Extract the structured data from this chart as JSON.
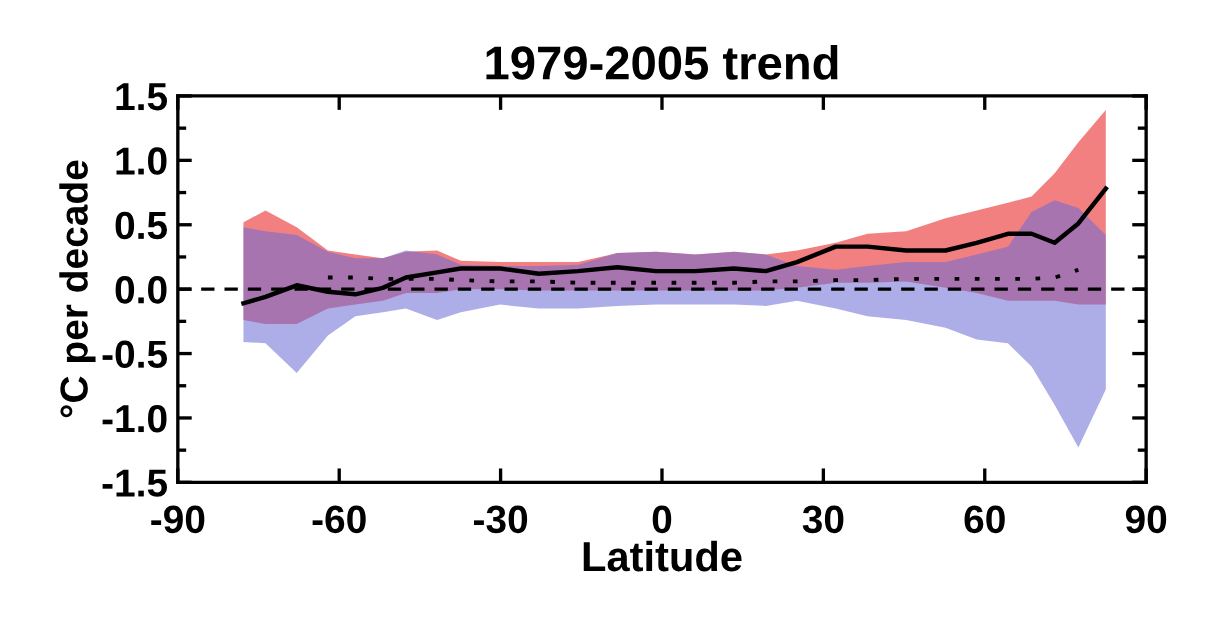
{
  "chart_data": {
    "type": "line",
    "title": "1979-2005 trend",
    "xlabel": "Latitude",
    "ylabel": "°C per decade",
    "xlim": [
      -90,
      90
    ],
    "xticks": [
      -90,
      -60,
      -30,
      0,
      30,
      60,
      90
    ],
    "ylim": [
      -1.5,
      1.5
    ],
    "yticks": [
      {
        "value": 1.5,
        "label": "1.5"
      },
      {
        "value": 1.0,
        "label": "1.0"
      },
      {
        "value": 0.5,
        "label": "0.5"
      },
      {
        "value": 0.0,
        "label": "0.0"
      },
      {
        "value": -0.5,
        "label": "-0.5"
      },
      {
        "value": -1.0,
        "label": "-1.0"
      },
      {
        "value": -1.5,
        "label": "-1.5"
      }
    ],
    "x": [
      -77.8,
      -73.7,
      -67.9,
      -62.1,
      -57,
      -51.9,
      -47.6,
      -41.8,
      -37.4,
      -30.1,
      -22.9,
      -15.6,
      -8.3,
      -1.1,
      6.2,
      13.4,
      19.3,
      25.1,
      32.3,
      38.2,
      45.4,
      52.7,
      58.5,
      64.3,
      68.7,
      73.0,
      77.4,
      82.5
    ],
    "series": [
      {
        "color": "#000000",
        "line_style": "solid",
        "values": [
          -0.11,
          -0.06,
          0.03,
          -0.02,
          -0.04,
          0.01,
          0.09,
          0.13,
          0.16,
          0.16,
          0.12,
          0.14,
          0.17,
          0.14,
          0.14,
          0.16,
          0.14,
          0.21,
          0.33,
          0.33,
          0.3,
          0.3,
          0.36,
          0.43,
          0.43,
          0.36,
          0.51,
          0.78
        ],
        "lower": [
          -0.24,
          -0.27,
          -0.27,
          -0.15,
          -0.12,
          -0.09,
          -0.03,
          -0.03,
          0.0,
          0.0,
          -0.01,
          -0.01,
          -0.01,
          -0.01,
          -0.01,
          -0.01,
          -0.01,
          0.01,
          0.05,
          0.05,
          0.06,
          0.01,
          -0.03,
          -0.09,
          -0.09,
          -0.09,
          -0.12,
          -0.12
        ],
        "upper": [
          0.52,
          0.61,
          0.48,
          0.3,
          0.27,
          0.24,
          0.29,
          0.3,
          0.22,
          0.21,
          0.21,
          0.21,
          0.28,
          0.29,
          0.27,
          0.29,
          0.27,
          0.3,
          0.36,
          0.43,
          0.45,
          0.55,
          0.61,
          0.67,
          0.72,
          0.9,
          1.14,
          1.39
        ]
      },
      {
        "color": "#000000",
        "line_style": "dotted",
        "values": [
          null,
          null,
          null,
          0.09,
          0.09,
          0.08,
          0.08,
          0.08,
          0.07,
          0.06,
          0.06,
          0.05,
          0.05,
          0.05,
          0.05,
          0.05,
          0.06,
          0.06,
          0.07,
          0.07,
          0.08,
          0.08,
          0.08,
          0.08,
          0.08,
          0.09,
          0.15,
          null
        ],
        "lower": [
          -0.41,
          -0.42,
          -0.65,
          -0.36,
          -0.21,
          -0.18,
          -0.15,
          -0.24,
          -0.18,
          -0.12,
          -0.15,
          -0.15,
          -0.13,
          -0.12,
          -0.12,
          -0.12,
          -0.13,
          -0.09,
          -0.15,
          -0.21,
          -0.24,
          -0.3,
          -0.39,
          -0.42,
          -0.6,
          -0.9,
          -1.23,
          -0.78
        ],
        "upper": [
          0.48,
          0.45,
          0.42,
          0.29,
          0.24,
          0.24,
          0.3,
          0.27,
          0.19,
          0.18,
          0.18,
          0.19,
          0.28,
          0.29,
          0.27,
          0.29,
          0.27,
          0.18,
          0.15,
          0.18,
          0.21,
          0.21,
          0.27,
          0.33,
          0.6,
          0.69,
          0.63,
          0.42
        ]
      }
    ],
    "ref_lines": [
      {
        "axis": "y",
        "value": 0.0,
        "color": "#000000",
        "line_style": "dashed"
      }
    ],
    "grid": false
  }
}
